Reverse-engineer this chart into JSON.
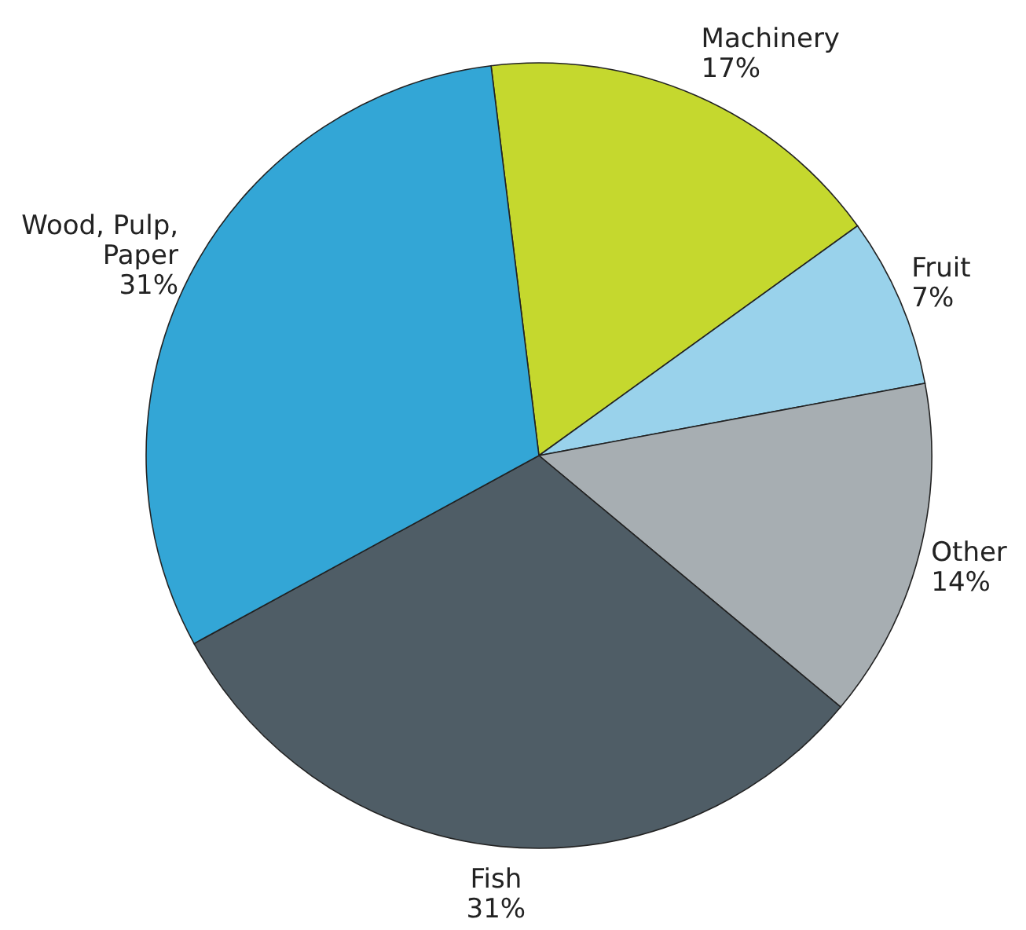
{
  "chart_data": {
    "type": "pie",
    "categories": [
      "Machinery",
      "Fruit",
      "Other",
      "Fish",
      "Wood, Pulp, Paper"
    ],
    "values": [
      17,
      7,
      14,
      31,
      31
    ],
    "value_labels": [
      "17%",
      "7%",
      "14%",
      "31%",
      "31%"
    ],
    "colors": [
      "#c5d82e",
      "#99d2eb",
      "#a7aeb2",
      "#4f5d66",
      "#33a6d6"
    ]
  }
}
